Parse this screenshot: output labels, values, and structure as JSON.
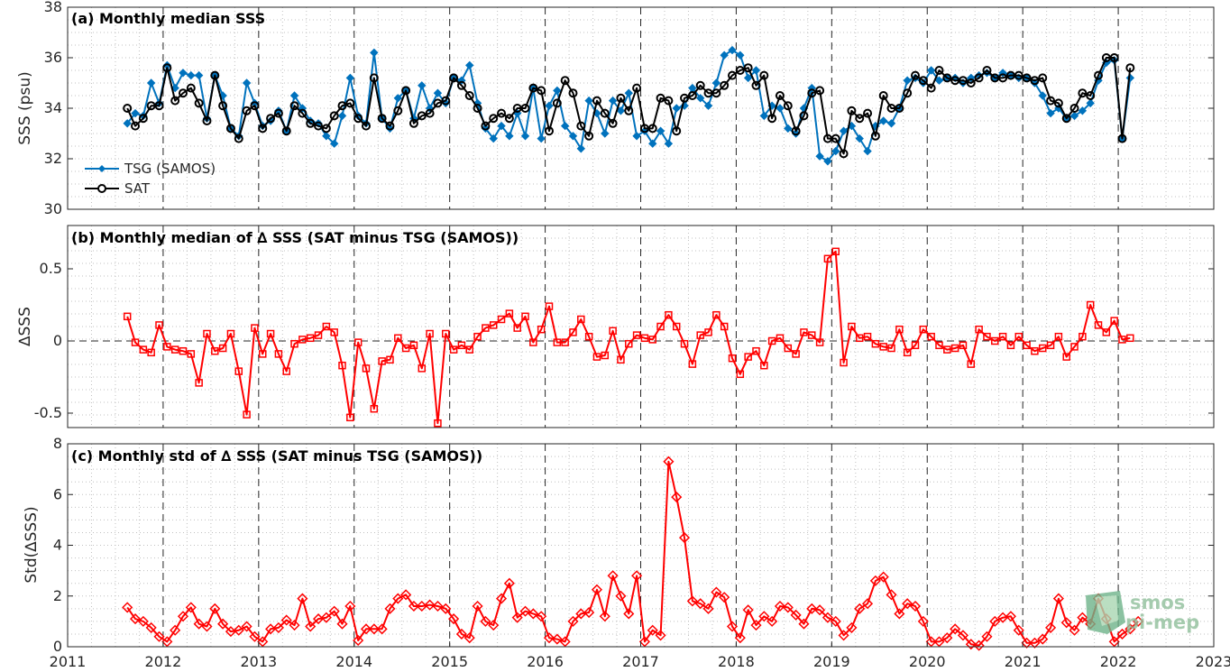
{
  "chart_data": [
    {
      "type": "line",
      "title": "(a) Monthly median SSS",
      "ylabel": "SSS (psu)",
      "xlim": [
        2011,
        2023
      ],
      "ylim": [
        30,
        38
      ],
      "yticks": [
        30,
        32,
        34,
        36,
        38
      ],
      "ytick_labels": [
        "30",
        "32",
        "34",
        "36",
        "38"
      ],
      "grid": true,
      "legend": "lower-left",
      "x_start": "2011-08",
      "x_step_months": 1,
      "series": [
        {
          "name": "TSG (SAMOS)",
          "color": "#0072bd",
          "marker": "diamond",
          "values": [
            33.4,
            33.8,
            33.7,
            35.0,
            34.2,
            35.7,
            34.8,
            35.4,
            35.3,
            35.3,
            33.6,
            35.3,
            34.5,
            33.2,
            32.9,
            35.0,
            34.2,
            33.3,
            33.5,
            33.9,
            33.1,
            34.5,
            34.0,
            33.5,
            33.4,
            32.9,
            32.6,
            33.7,
            35.2,
            33.7,
            33.4,
            36.2,
            33.6,
            33.2,
            34.4,
            34.7,
            33.6,
            34.9,
            34.0,
            34.6,
            34.2,
            35.2,
            35.1,
            35.7,
            34.2,
            33.2,
            32.8,
            33.3,
            32.9,
            33.8,
            32.9,
            34.8,
            32.8,
            34.1,
            34.7,
            33.3,
            32.9,
            32.4,
            34.3,
            33.8,
            33.0,
            34.3,
            33.9,
            34.6,
            32.9,
            33.1,
            32.6,
            33.1,
            32.6,
            34.0,
            34.1,
            34.8,
            34.4,
            34.1,
            35.0,
            36.1,
            36.3,
            36.1,
            35.2,
            35.5,
            33.7,
            34.1,
            34.0,
            33.2,
            33.0,
            34.0,
            34.8,
            32.1,
            31.9,
            32.3,
            33.1,
            33.3,
            32.8,
            32.3,
            33.3,
            33.5,
            33.4,
            34.0,
            35.1,
            35.2,
            35.0,
            35.5,
            35.1,
            35.2,
            35.2,
            35.0,
            35.2,
            35.3,
            35.4,
            35.2,
            35.4,
            35.3,
            35.2,
            35.2,
            35.0,
            34.5,
            33.8,
            34.0,
            33.6,
            33.7,
            33.9,
            34.2,
            35.1,
            35.8,
            35.9,
            32.8,
            35.2
          ]
        },
        {
          "name": "SAT",
          "color": "#000000",
          "marker": "circle",
          "values": [
            34.0,
            33.3,
            33.6,
            34.1,
            34.1,
            35.6,
            34.3,
            34.6,
            34.8,
            34.2,
            33.5,
            35.3,
            34.1,
            33.2,
            32.8,
            33.9,
            34.1,
            33.2,
            33.6,
            33.8,
            33.1,
            34.1,
            33.8,
            33.4,
            33.3,
            33.2,
            33.7,
            34.1,
            34.2,
            33.6,
            33.3,
            35.2,
            33.6,
            33.3,
            33.9,
            34.7,
            33.4,
            33.7,
            33.8,
            34.2,
            34.3,
            35.2,
            34.9,
            34.5,
            34.0,
            33.3,
            33.6,
            33.8,
            33.6,
            34.0,
            34.0,
            34.8,
            34.7,
            33.1,
            34.2,
            35.1,
            34.6,
            33.3,
            32.9,
            34.3,
            33.8,
            33.4,
            34.4,
            33.9,
            34.8,
            33.2,
            33.2,
            34.4,
            34.3,
            33.1,
            34.4,
            34.5,
            34.9,
            34.6,
            34.6,
            34.9,
            35.3,
            35.5,
            35.6,
            34.9,
            35.3,
            33.6,
            34.5,
            34.1,
            33.1,
            33.7,
            34.6,
            34.7,
            32.8,
            32.8,
            32.2,
            33.9,
            33.6,
            33.8,
            32.9,
            34.5,
            34.0,
            34.0,
            34.6,
            35.3,
            35.1,
            34.8,
            35.5,
            35.2,
            35.1,
            35.1,
            35.0,
            35.2,
            35.5,
            35.2,
            35.2,
            35.3,
            35.3,
            35.2,
            35.1,
            35.2,
            34.3,
            34.2,
            33.6,
            34.0,
            34.6,
            34.5,
            35.3,
            36.0,
            36.0,
            32.8,
            35.6
          ]
        }
      ]
    },
    {
      "type": "line",
      "title": "(b) Monthly median of ∆ SSS (SAT minus TSG (SAMOS))",
      "ylabel": "∆SSS",
      "xlim": [
        2011,
        2023
      ],
      "ylim": [
        -0.6,
        0.8
      ],
      "yticks": [
        -0.5,
        0,
        0.5
      ],
      "ytick_labels": [
        "-0.5",
        "0",
        "0.5"
      ],
      "grid": true,
      "zero_line": true,
      "x_start": "2011-08",
      "x_step_months": 1,
      "series": [
        {
          "color": "#ff0000",
          "marker": "square",
          "values": [
            0.17,
            -0.01,
            -0.06,
            -0.08,
            0.11,
            -0.04,
            -0.06,
            -0.07,
            -0.09,
            -0.29,
            0.05,
            -0.07,
            -0.05,
            0.05,
            -0.21,
            -0.51,
            0.09,
            -0.09,
            0.05,
            -0.09,
            -0.21,
            -0.02,
            0.01,
            0.02,
            0.04,
            0.1,
            0.06,
            -0.17,
            -0.53,
            -0.01,
            -0.19,
            -0.47,
            -0.14,
            -0.13,
            0.02,
            -0.05,
            -0.03,
            -0.19,
            0.05,
            -0.57,
            0.05,
            -0.06,
            -0.03,
            -0.06,
            0.03,
            0.09,
            0.11,
            0.15,
            0.19,
            0.09,
            0.17,
            -0.01,
            0.08,
            0.24,
            -0.01,
            -0.01,
            0.06,
            0.15,
            0.03,
            -0.11,
            -0.1,
            0.07,
            -0.13,
            -0.02,
            0.04,
            0.02,
            0.01,
            0.1,
            0.18,
            0.1,
            -0.02,
            -0.16,
            0.04,
            0.06,
            0.18,
            0.1,
            -0.12,
            -0.23,
            -0.11,
            -0.07,
            -0.17,
            0.0,
            0.02,
            -0.05,
            -0.09,
            0.06,
            0.04,
            -0.01,
            0.57,
            0.62,
            -0.15,
            0.1,
            0.02,
            0.03,
            -0.02,
            -0.04,
            -0.05,
            0.08,
            -0.08,
            -0.03,
            0.08,
            0.03,
            -0.03,
            -0.06,
            -0.05,
            -0.03,
            -0.16,
            0.08,
            0.03,
            0.0,
            0.03,
            -0.03,
            0.03,
            -0.03,
            -0.07,
            -0.05,
            -0.03,
            0.03,
            -0.11,
            -0.04,
            0.03,
            0.25,
            0.11,
            0.06,
            0.14,
            0.01,
            0.02
          ]
        }
      ]
    },
    {
      "type": "line",
      "title": "(c) Monthly std of ∆ SSS (SAT minus TSG (SAMOS))",
      "ylabel": "Std(∆SSS)",
      "xlabel": "",
      "xlim": [
        2011,
        2023
      ],
      "ylim": [
        0,
        8
      ],
      "yticks": [
        0,
        2,
        4,
        6,
        8
      ],
      "ytick_labels": [
        "0",
        "2",
        "4",
        "6",
        "8"
      ],
      "xticks": [
        2011,
        2012,
        2013,
        2014,
        2015,
        2016,
        2017,
        2018,
        2019,
        2020,
        2021,
        2022,
        2023
      ],
      "xtick_labels": [
        "2011",
        "2012",
        "2013",
        "2014",
        "2015",
        "2016",
        "2017",
        "2018",
        "2019",
        "2020",
        "2021",
        "2022",
        "2023"
      ],
      "grid": true,
      "x_start": "2011-08",
      "x_step_months": 1,
      "series": [
        {
          "color": "#ff0000",
          "marker": "diamond",
          "values": [
            1.55,
            1.1,
            1.0,
            0.75,
            0.4,
            0.2,
            0.65,
            1.2,
            1.55,
            0.9,
            0.8,
            1.5,
            0.9,
            0.6,
            0.65,
            0.8,
            0.4,
            0.2,
            0.7,
            0.75,
            1.05,
            0.85,
            1.9,
            0.8,
            1.1,
            1.15,
            1.4,
            0.9,
            1.6,
            0.25,
            0.7,
            0.7,
            0.7,
            1.5,
            1.9,
            2.05,
            1.6,
            1.6,
            1.65,
            1.6,
            1.5,
            1.1,
            0.5,
            0.35,
            1.6,
            1.0,
            0.85,
            1.9,
            2.5,
            1.15,
            1.4,
            1.3,
            1.2,
            0.35,
            0.3,
            0.2,
            1.0,
            1.3,
            1.35,
            2.25,
            1.2,
            2.8,
            2.0,
            1.3,
            2.8,
            0.2,
            0.65,
            0.45,
            7.3,
            5.9,
            4.3,
            1.8,
            1.7,
            1.5,
            2.15,
            1.95,
            0.8,
            0.35,
            1.45,
            0.85,
            1.2,
            1.0,
            1.6,
            1.55,
            1.25,
            0.9,
            1.5,
            1.45,
            1.15,
            1.0,
            0.45,
            0.75,
            1.5,
            1.7,
            2.6,
            2.75,
            2.05,
            1.3,
            1.7,
            1.6,
            1.0,
            0.2,
            0.2,
            0.35,
            0.7,
            0.45,
            0.1,
            0.05,
            0.4,
            1.0,
            1.15,
            1.2,
            0.65,
            0.15,
            0.15,
            0.3,
            0.75,
            1.9,
            0.95,
            0.65,
            1.15,
            0.9,
            1.9,
            1.1,
            0.2,
            0.5,
            0.7,
            1.0
          ]
        }
      ]
    }
  ],
  "logo": {
    "line1": "smos",
    "line2": "pi-mep"
  }
}
